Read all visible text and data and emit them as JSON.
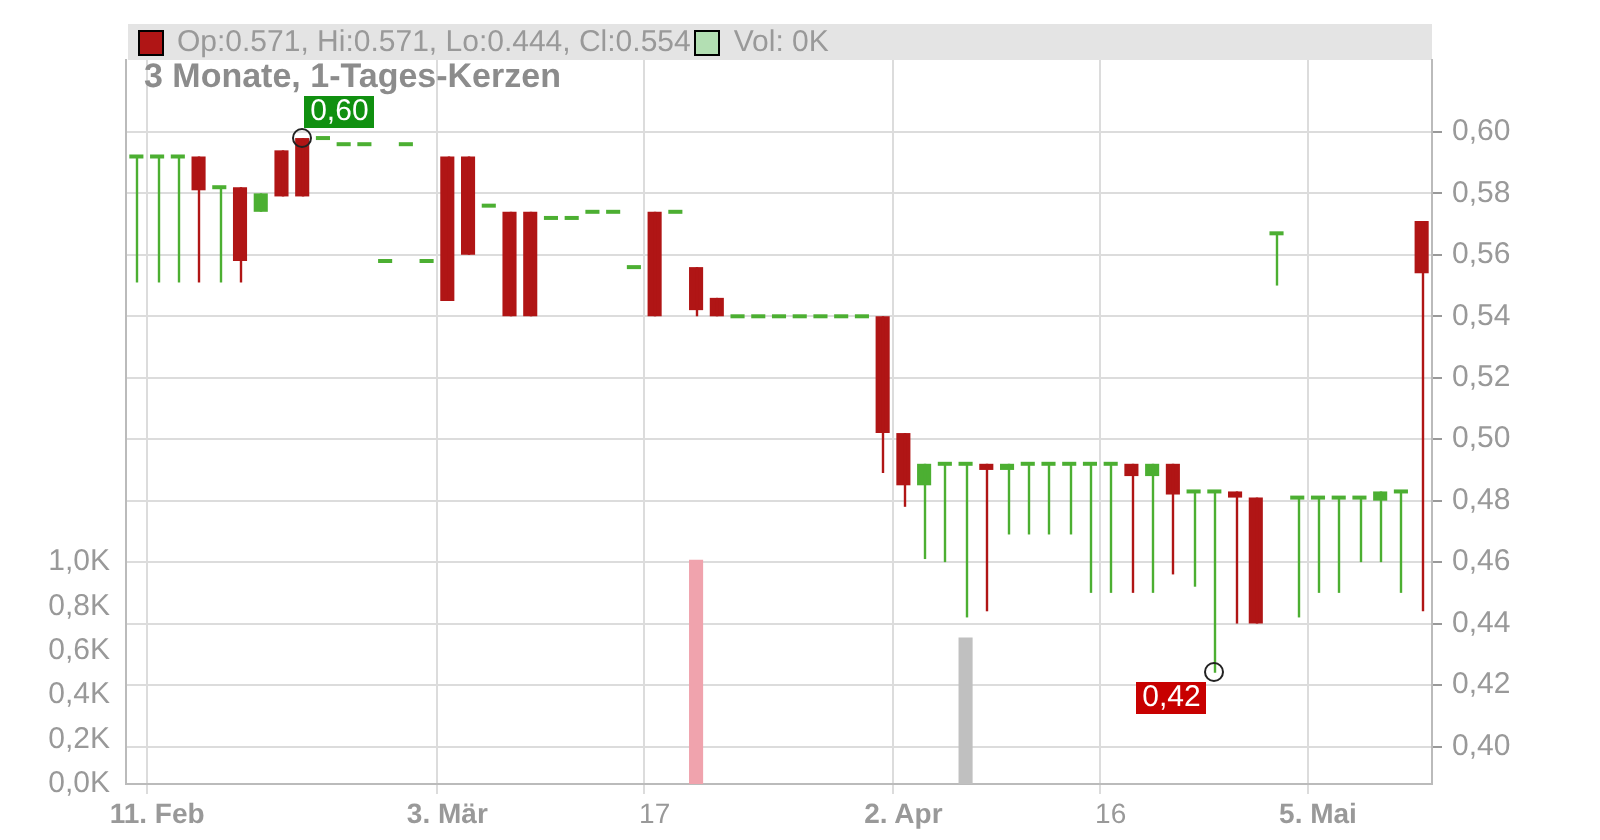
{
  "chart_data": {
    "type": "candlestick",
    "title": "3 Monate, 1-Tages-Kerzen",
    "categories": [
      null,
      "11. Feb",
      null,
      null,
      null,
      null,
      null,
      null,
      null,
      null,
      null,
      null,
      null,
      null,
      null,
      "3. Mär",
      null,
      null,
      null,
      null,
      null,
      null,
      null,
      null,
      null,
      "17",
      null,
      null,
      null,
      null,
      null,
      null,
      null,
      null,
      null,
      null,
      null,
      "2. Apr",
      null,
      null,
      null,
      null,
      null,
      null,
      null,
      null,
      null,
      "16",
      null,
      null,
      null,
      null,
      null,
      null,
      null,
      null,
      null,
      "5. Mai",
      null,
      null,
      null,
      null,
      null
    ],
    "series": [
      {
        "name": "Op:0.571, Hi:0.571, Lo:0.444, Cl:0.554",
        "color": "#b01515",
        "colors": [
          "#4caf32",
          "#4caf32",
          "#4caf32",
          "#b01515",
          "#4caf32",
          "#b01515",
          "#4caf32",
          "#b01515",
          "#b01515",
          "#4caf32",
          "#4caf32",
          "#4caf32",
          "#4caf32",
          "#4caf32",
          "#4caf32",
          "#b01515",
          "#b01515",
          "#4caf32",
          "#b01515",
          "#b01515",
          "#4caf32",
          "#4caf32",
          "#4caf32",
          "#4caf32",
          "#4caf32",
          "#b01515",
          "#4caf32",
          "#b01515",
          "#b01515",
          "#4caf32",
          "#4caf32",
          "#4caf32",
          "#4caf32",
          "#4caf32",
          "#4caf32",
          "#4caf32",
          "#b01515",
          "#b01515",
          "#4caf32",
          "#4caf32",
          "#4caf32",
          "#b01515",
          "#4caf32",
          "#4caf32",
          "#4caf32",
          "#4caf32",
          "#4caf32",
          "#4caf32",
          "#b01515",
          "#4caf32",
          "#b01515",
          "#4caf32",
          "#4caf32",
          "#b01515",
          "#b01515",
          "#4caf32",
          "#4caf32",
          "#4caf32",
          "#4caf32",
          "#4caf32",
          "#4caf32",
          "#4caf32",
          "#b01515"
        ],
        "ohlc": [
          [
            0.592,
            0.592,
            0.551,
            0.592
          ],
          [
            0.592,
            0.592,
            0.551,
            0.592
          ],
          [
            0.592,
            0.592,
            0.551,
            0.592
          ],
          [
            0.592,
            0.592,
            0.551,
            0.581
          ],
          [
            0.582,
            0.582,
            0.551,
            0.582
          ],
          [
            0.582,
            0.582,
            0.551,
            0.558
          ],
          [
            0.574,
            0.58,
            0.574,
            0.58
          ],
          [
            0.594,
            0.594,
            0.579,
            0.579
          ],
          [
            0.598,
            0.598,
            0.579,
            0.579
          ],
          [
            0.598,
            0.598,
            0.598,
            0.598
          ],
          [
            0.596,
            0.596,
            0.596,
            0.596
          ],
          [
            0.596,
            0.596,
            0.596,
            0.596
          ],
          [
            0.558,
            0.558,
            0.558,
            0.558
          ],
          [
            0.596,
            0.596,
            0.596,
            0.596
          ],
          [
            0.558,
            0.558,
            0.558,
            0.558
          ],
          [
            0.592,
            0.592,
            0.545,
            0.545
          ],
          [
            0.592,
            0.592,
            0.56,
            0.56
          ],
          [
            0.576,
            0.576,
            0.576,
            0.576
          ],
          [
            0.574,
            0.574,
            0.54,
            0.54
          ],
          [
            0.574,
            0.574,
            0.54,
            0.54
          ],
          [
            0.572,
            0.572,
            0.572,
            0.572
          ],
          [
            0.572,
            0.572,
            0.572,
            0.572
          ],
          [
            0.574,
            0.574,
            0.574,
            0.574
          ],
          [
            0.574,
            0.574,
            0.574,
            0.574
          ],
          [
            0.556,
            0.556,
            0.556,
            0.556
          ],
          [
            0.574,
            0.574,
            0.54,
            0.54
          ],
          [
            0.574,
            0.574,
            0.574,
            0.574
          ],
          [
            0.556,
            0.556,
            0.54,
            0.542
          ],
          [
            0.546,
            0.546,
            0.54,
            0.54
          ],
          [
            0.54,
            0.54,
            0.54,
            0.54
          ],
          [
            0.54,
            0.54,
            0.54,
            0.54
          ],
          [
            0.54,
            0.54,
            0.54,
            0.54
          ],
          [
            0.54,
            0.54,
            0.54,
            0.54
          ],
          [
            0.54,
            0.54,
            0.54,
            0.54
          ],
          [
            0.54,
            0.54,
            0.54,
            0.54
          ],
          [
            0.54,
            0.54,
            0.54,
            0.54
          ],
          [
            0.54,
            0.54,
            0.489,
            0.502
          ],
          [
            0.502,
            0.502,
            0.478,
            0.485
          ],
          [
            0.485,
            0.492,
            0.461,
            0.492
          ],
          [
            0.492,
            0.492,
            0.46,
            0.492
          ],
          [
            0.492,
            0.492,
            0.442,
            0.492
          ],
          [
            0.492,
            0.492,
            0.444,
            0.49
          ],
          [
            0.49,
            0.492,
            0.469,
            0.492
          ],
          [
            0.492,
            0.492,
            0.469,
            0.492
          ],
          [
            0.492,
            0.492,
            0.469,
            0.492
          ],
          [
            0.492,
            0.492,
            0.469,
            0.492
          ],
          [
            0.492,
            0.492,
            0.45,
            0.492
          ],
          [
            0.492,
            0.492,
            0.45,
            0.492
          ],
          [
            0.492,
            0.492,
            0.45,
            0.488
          ],
          [
            0.488,
            0.492,
            0.45,
            0.492
          ],
          [
            0.492,
            0.492,
            0.456,
            0.482
          ],
          [
            0.483,
            0.483,
            0.452,
            0.483
          ],
          [
            0.483,
            0.483,
            0.424,
            0.483
          ],
          [
            0.483,
            0.483,
            0.44,
            0.481
          ],
          [
            0.481,
            0.481,
            0.44,
            0.44
          ],
          [
            0.567,
            0.567,
            0.55,
            0.567
          ],
          [
            0.481,
            0.481,
            0.442,
            0.481
          ],
          [
            0.481,
            0.481,
            0.45,
            0.481
          ],
          [
            0.481,
            0.481,
            0.45,
            0.481
          ],
          [
            0.481,
            0.481,
            0.46,
            0.481
          ],
          [
            0.48,
            0.483,
            0.46,
            0.483
          ],
          [
            0.483,
            0.483,
            0.45,
            0.483
          ],
          [
            0.571,
            0.571,
            0.444,
            0.554
          ]
        ]
      },
      {
        "name": "Vol: 0K",
        "type": "bar",
        "axis": "y2",
        "color": "#b3dfb3",
        "colors": [
          "#c0c0c0",
          "#c0c0c0",
          "#c0c0c0",
          "#c0c0c0",
          "#c0c0c0",
          "#c0c0c0",
          "#c0c0c0",
          "#c0c0c0",
          "#c0c0c0",
          "#c0c0c0",
          "#c0c0c0",
          "#c0c0c0",
          "#c0c0c0",
          "#c0c0c0",
          "#c0c0c0",
          "#c0c0c0",
          "#c0c0c0",
          "#c0c0c0",
          "#c0c0c0",
          "#c0c0c0",
          "#c0c0c0",
          "#c0c0c0",
          "#c0c0c0",
          "#c0c0c0",
          "#c0c0c0",
          "#c0c0c0",
          "#c0c0c0",
          "#f0a3ad",
          "#c0c0c0",
          "#c0c0c0",
          "#c0c0c0",
          "#c0c0c0",
          "#c0c0c0",
          "#c0c0c0",
          "#c0c0c0",
          "#c0c0c0",
          "#c0c0c0",
          "#c0c0c0",
          "#c0c0c0",
          "#c0c0c0",
          "#c0c0c0",
          "#c0c0c0",
          "#c0c0c0",
          "#c0c0c0",
          "#c0c0c0",
          "#c0c0c0",
          "#c0c0c0",
          "#c0c0c0",
          "#c0c0c0",
          "#c0c0c0",
          "#c0c0c0",
          "#c0c0c0",
          "#c0c0c0",
          "#c0c0c0",
          "#c0c0c0",
          "#c0c0c0",
          "#c0c0c0",
          "#c0c0c0",
          "#c0c0c0",
          "#c0c0c0",
          "#c0c0c0",
          "#c0c0c0",
          "#c0c0c0"
        ],
        "values": [
          0,
          0,
          0,
          0,
          0,
          0,
          0,
          0,
          0,
          0,
          0,
          0,
          0,
          0,
          0,
          0,
          0,
          0,
          0,
          0,
          0,
          0,
          0,
          0,
          0,
          0,
          0,
          1.01,
          0,
          0,
          0,
          0,
          0,
          0,
          0,
          0,
          0,
          0,
          0,
          0,
          0.66,
          0,
          0,
          0,
          0,
          0,
          0,
          0,
          0,
          0,
          0,
          0,
          0,
          0,
          0,
          0,
          0,
          0,
          0,
          0,
          0,
          0,
          0
        ]
      }
    ],
    "ylim": [
      0.3878,
      0.6234
    ],
    "yticks": [
      {
        "value": 0.4,
        "label": "0,40"
      },
      {
        "value": 0.42,
        "label": "0,42"
      },
      {
        "value": 0.44,
        "label": "0,44"
      },
      {
        "value": 0.46,
        "label": "0,46"
      },
      {
        "value": 0.48,
        "label": "0,48"
      },
      {
        "value": 0.5,
        "label": "0,50"
      },
      {
        "value": 0.52,
        "label": "0,52"
      },
      {
        "value": 0.54,
        "label": "0,54"
      },
      {
        "value": 0.56,
        "label": "0,56"
      },
      {
        "value": 0.58,
        "label": "0,58"
      },
      {
        "value": 0.6,
        "label": "0,60"
      }
    ],
    "y2lim": [
      0,
      3.26
    ],
    "y2ticks": [
      {
        "value": 0,
        "label": "0,0K"
      },
      {
        "value": 0.2,
        "label": "0,2K"
      },
      {
        "value": 0.4,
        "label": "0,4K"
      },
      {
        "value": 0.6,
        "label": "0,6K"
      },
      {
        "value": 0.8,
        "label": "0,8K"
      },
      {
        "value": 1,
        "label": "1,0K"
      }
    ],
    "grid": true,
    "legend": "top left",
    "annotations": [
      "0,60",
      "0,42"
    ]
  }
}
